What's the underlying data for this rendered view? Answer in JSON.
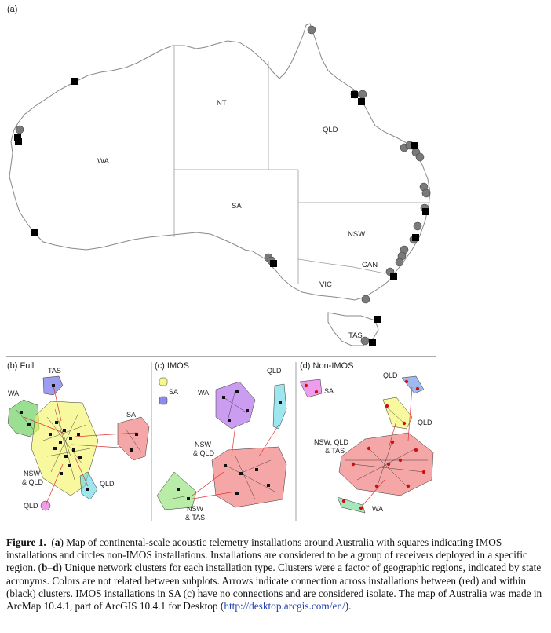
{
  "panels": {
    "a": {
      "label": "(a)",
      "states": [
        "NT",
        "QLD",
        "WA",
        "SA",
        "NSW",
        "CAN",
        "VIC",
        "TAS"
      ]
    },
    "b": {
      "label": "(b) Full",
      "clusters": [
        {
          "name": "TAS",
          "color": "#5a5ae6"
        },
        {
          "name": "WA",
          "color": "#57c94a"
        },
        {
          "name": "SA",
          "color": "#ef6a6a"
        },
        {
          "name": "NSW\n& QLD",
          "color": "#f3f35f"
        },
        {
          "name": "QLD",
          "color": "#5cd6e6"
        },
        {
          "name": "QLD",
          "color": "#e35ce3"
        }
      ]
    },
    "c": {
      "label": "(c) IMOS",
      "clusters": [
        {
          "name": "QLD",
          "color": "#5cd6e6"
        },
        {
          "name": "SA",
          "color": "#f3f35f"
        },
        {
          "name": "WA",
          "color": "#a65ce6"
        },
        {
          "name": "NSW\n& QLD",
          "color": "#ef6a6a"
        },
        {
          "name": "NSW\n& TAS",
          "color": "#8ae06a"
        }
      ]
    },
    "d": {
      "label": "(d) Non-IMOS",
      "clusters": [
        {
          "name": "SA",
          "color": "#e35ce3"
        },
        {
          "name": "QLD",
          "color": "#5a8ae6"
        },
        {
          "name": "QLD",
          "color": "#f3f35f"
        },
        {
          "name": "NSW, QLD\n& TAS",
          "color": "#ef6a6a"
        },
        {
          "name": "WA",
          "color": "#6ad98a"
        }
      ]
    }
  },
  "caption": {
    "lead": "Figure 1.",
    "open_a": "(",
    "a": "a",
    "text1": ") Map of continental-scale acoustic telemetry installations around Australia with squares indicating IMOS installations and circles non-IMOS installations. Installations are considered to be a group of receivers deployed in a specific region. (",
    "bd": "b–d",
    "text2": ") Unique network clusters for each installation type. Clusters were a factor of geographic regions, indicated by state acronyms. Colors are not related between subplots. Arrows indicate connection across installations between (red) and within (black) clusters. IMOS installations in SA (",
    "c": "c",
    "text3": ") have no connections and are considered isolate. The map of Australia was made in ArcMap 10.4.1, part of ArcGIS 10.4.1 for Desktop (",
    "link": "http://desktop.arcgis.com/en/",
    "text4": ")."
  }
}
